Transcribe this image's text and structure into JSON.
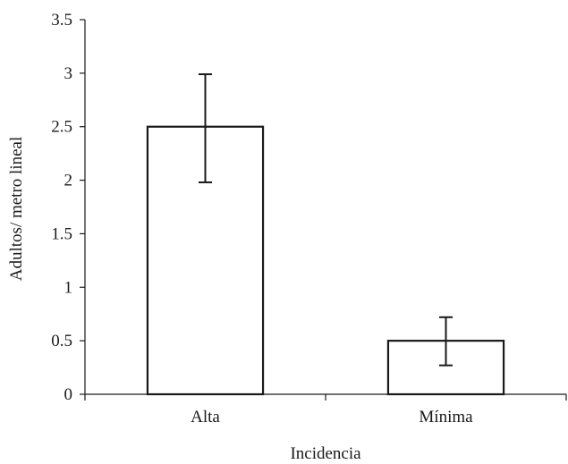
{
  "chart_data": {
    "type": "bar",
    "title": "",
    "xlabel": "Incidencia",
    "ylabel": "Adultos/ metro lineal",
    "categories": [
      "Alta",
      "Mínima"
    ],
    "values": [
      2.5,
      0.5
    ],
    "error_low": [
      1.98,
      0.27
    ],
    "error_high": [
      2.99,
      0.72
    ],
    "ylim": [
      0,
      3.5
    ],
    "yticks": [
      0,
      0.5,
      1,
      1.5,
      2,
      2.5,
      3,
      3.5
    ],
    "ytick_labels": [
      "0",
      "0.5",
      "1",
      "1.5",
      "2",
      "2.5",
      "3",
      "3.5"
    ],
    "grid": false,
    "legend": "none",
    "bar_fill": "#ffffff",
    "stroke_color": "#1a1a1a"
  }
}
